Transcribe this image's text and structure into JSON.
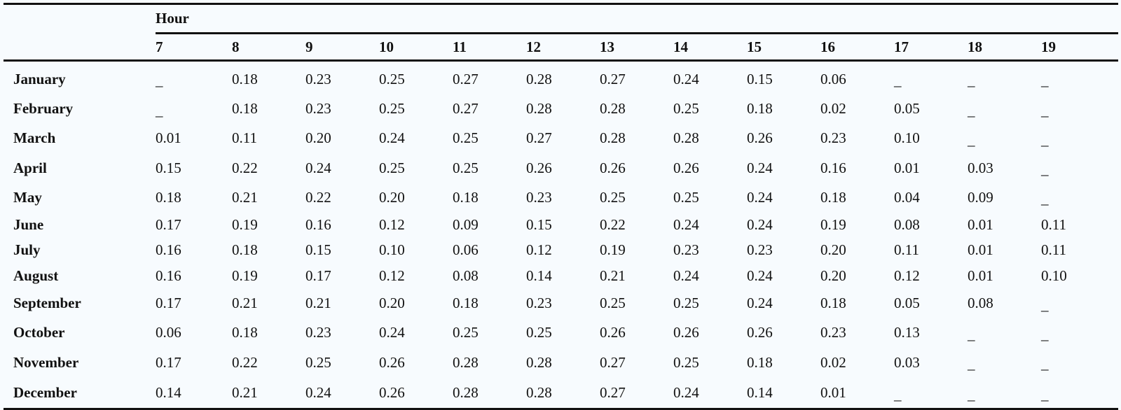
{
  "table": {
    "group_header": "Hour",
    "hours": [
      "7",
      "8",
      "9",
      "10",
      "11",
      "12",
      "13",
      "14",
      "15",
      "16",
      "17",
      "18",
      "19"
    ],
    "rows": [
      {
        "month": "January",
        "values": [
          "_",
          "0.18",
          "0.23",
          "0.25",
          "0.27",
          "0.28",
          "0.27",
          "0.24",
          "0.15",
          "0.06",
          "_",
          "_",
          "_"
        ]
      },
      {
        "month": "February",
        "values": [
          "_",
          "0.18",
          "0.23",
          "0.25",
          "0.27",
          "0.28",
          "0.28",
          "0.25",
          "0.18",
          "0.02",
          "0.05",
          "_",
          "_"
        ]
      },
      {
        "month": "March",
        "values": [
          "0.01",
          "0.11",
          "0.20",
          "0.24",
          "0.25",
          "0.27",
          "0.28",
          "0.28",
          "0.26",
          "0.23",
          "0.10",
          "_",
          "_"
        ]
      },
      {
        "month": "April",
        "values": [
          "0.15",
          "0.22",
          "0.24",
          "0.25",
          "0.25",
          "0.26",
          "0.26",
          "0.26",
          "0.24",
          "0.16",
          "0.01",
          "0.03",
          "_"
        ]
      },
      {
        "month": "May",
        "values": [
          "0.18",
          "0.21",
          "0.22",
          "0.20",
          "0.18",
          "0.23",
          "0.25",
          "0.25",
          "0.24",
          "0.18",
          "0.04",
          "0.09",
          "_"
        ]
      },
      {
        "month": "June",
        "values": [
          "0.17",
          "0.19",
          "0.16",
          "0.12",
          "0.09",
          "0.15",
          "0.22",
          "0.24",
          "0.24",
          "0.19",
          "0.08",
          "0.01",
          "0.11"
        ]
      },
      {
        "month": "July",
        "values": [
          "0.16",
          "0.18",
          "0.15",
          "0.10",
          "0.06",
          "0.12",
          "0.19",
          "0.23",
          "0.23",
          "0.20",
          "0.11",
          "0.01",
          "0.11"
        ]
      },
      {
        "month": "August",
        "values": [
          "0.16",
          "0.19",
          "0.17",
          "0.12",
          "0.08",
          "0.14",
          "0.21",
          "0.24",
          "0.24",
          "0.20",
          "0.12",
          "0.01",
          "0.10"
        ]
      },
      {
        "month": "September",
        "values": [
          "0.17",
          "0.21",
          "0.21",
          "0.20",
          "0.18",
          "0.23",
          "0.25",
          "0.25",
          "0.24",
          "0.18",
          "0.05",
          "0.08",
          "_"
        ]
      },
      {
        "month": "October",
        "values": [
          "0.06",
          "0.18",
          "0.23",
          "0.24",
          "0.25",
          "0.25",
          "0.26",
          "0.26",
          "0.26",
          "0.23",
          "0.13",
          "_",
          "_"
        ]
      },
      {
        "month": "November",
        "values": [
          "0.17",
          "0.22",
          "0.25",
          "0.26",
          "0.28",
          "0.28",
          "0.27",
          "0.25",
          "0.18",
          "0.02",
          "0.03",
          "_",
          "_"
        ]
      },
      {
        "month": "December",
        "values": [
          "0.14",
          "0.21",
          "0.24",
          "0.26",
          "0.28",
          "0.28",
          "0.27",
          "0.24",
          "0.14",
          "0.01",
          "_",
          "_",
          "_"
        ]
      }
    ]
  }
}
